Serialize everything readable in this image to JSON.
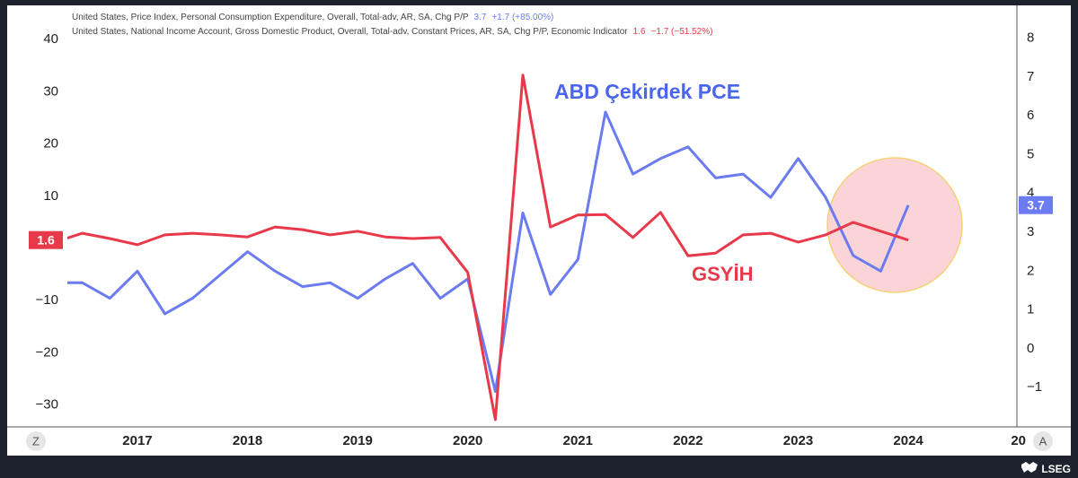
{
  "chart_data": {
    "type": "line",
    "x": [
      2016.25,
      2016.5,
      2016.75,
      2017,
      2017.25,
      2017.5,
      2017.75,
      2018,
      2018.25,
      2018.5,
      2018.75,
      2019,
      2019.25,
      2019.5,
      2019.75,
      2020,
      2020.25,
      2020.5,
      2020.75,
      2021,
      2021.25,
      2021.5,
      2021.75,
      2022,
      2022.25,
      2022.5,
      2022.75,
      2023,
      2023.25,
      2023.5,
      2023.75,
      2024
    ],
    "series": [
      {
        "name": "United States, Price Index, Personal Consumption Expenditure, Overall, Total-adv, AR, SA, Chg P/P",
        "change": "+1.7 (+85.00%)",
        "color": "#6b7cf0",
        "axis": "y2",
        "values": [
          1.7,
          1.7,
          1.3,
          2.0,
          0.9,
          1.3,
          1.9,
          2.5,
          2.0,
          1.6,
          1.7,
          1.3,
          1.8,
          2.2,
          1.3,
          1.8,
          -1.1,
          3.5,
          1.4,
          2.3,
          6.1,
          4.5,
          4.9,
          5.2,
          4.4,
          4.5,
          3.9,
          4.9,
          3.9,
          2.4,
          2.0,
          3.7
        ]
      },
      {
        "name": "United States, National Income Account, Gross Domestic Product, Overall, Total-adv, Constant Prices, AR, SA, Chg P/P, Economic Indicator",
        "change": "−1.7 (−51.52%)",
        "color": "#e8394a",
        "axis": "y",
        "values": [
          1.2,
          2.9,
          1.9,
          0.7,
          2.6,
          2.9,
          2.6,
          2.2,
          4.1,
          3.6,
          2.6,
          3.3,
          2.2,
          1.9,
          2.1,
          -4.6,
          -32.8,
          33.2,
          4.1,
          6.4,
          6.5,
          2.1,
          6.9,
          -1.4,
          -0.9,
          2.6,
          2.9,
          1.2,
          2.6,
          5.0,
          3.3,
          1.6
        ]
      }
    ],
    "xlim": [
      2016.364,
      2024.97
    ],
    "xticks": [
      2017,
      2018,
      2019,
      2020,
      2021,
      2022,
      2023,
      2024,
      {
        "value": 2025,
        "label": "20"
      }
    ],
    "ylim": [
      -34.0,
      46.2
    ],
    "yticks": [
      40,
      30,
      20,
      10,
      {
        "value": -10,
        "label": "−10"
      },
      {
        "value": -20,
        "label": "−20"
      },
      {
        "value": -30,
        "label": "−30"
      }
    ],
    "y2lim": [
      -1.99,
      8.8
    ],
    "y2ticks": [
      8,
      7,
      6,
      5,
      4,
      3,
      2,
      1,
      0,
      {
        "value": -1,
        "label": "−1"
      }
    ],
    "annotations": [
      "ABD Çekirdek PCE",
      "GSYİH"
    ]
  },
  "controls": [
    "Z",
    "A"
  ],
  "brand": "LSEG"
}
